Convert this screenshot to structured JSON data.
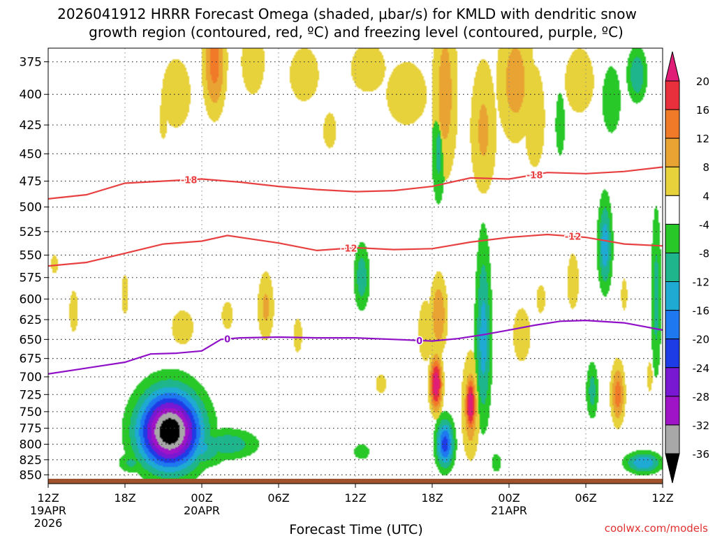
{
  "chart_data": {
    "type": "heatmap",
    "title_line1": "2026041912 HRRR Forecast Omega (shaded, μbar/s) for KMLD with dendritic snow",
    "title_line2": "growth region (contoured, red, ºC) and freezing level (contoured, purple, ºC)",
    "xlabel": "Forecast Time (UTC)",
    "credit": "coolwx.com/models",
    "x_hours_range": [
      0,
      48
    ],
    "y_pressure_range": [
      865,
      365
    ],
    "y_ticks": [
      375,
      400,
      425,
      450,
      475,
      500,
      525,
      550,
      575,
      600,
      625,
      650,
      675,
      700,
      725,
      750,
      775,
      800,
      825,
      850
    ],
    "x_ticks": [
      {
        "hour": 0,
        "time": "12Z",
        "date": "19APR",
        "year": "2026"
      },
      {
        "hour": 6,
        "time": "18Z",
        "date": "",
        "year": ""
      },
      {
        "hour": 12,
        "time": "00Z",
        "date": "20APR",
        "year": ""
      },
      {
        "hour": 18,
        "time": "06Z",
        "date": "",
        "year": ""
      },
      {
        "hour": 24,
        "time": "12Z",
        "date": "",
        "year": ""
      },
      {
        "hour": 30,
        "time": "18Z",
        "date": "",
        "year": ""
      },
      {
        "hour": 36,
        "time": "00Z",
        "date": "21APR",
        "year": ""
      },
      {
        "hour": 42,
        "time": "06Z",
        "date": "",
        "year": ""
      },
      {
        "hour": 48,
        "time": "12Z",
        "date": "",
        "year": ""
      }
    ],
    "colorbar_labels": [
      "20",
      "16",
      "12",
      "8",
      "4",
      "-4",
      "-8",
      "-12",
      "-16",
      "-20",
      "-24",
      "-28",
      "-32",
      "-36"
    ],
    "colorbar_bins": [
      {
        "range": [
          16,
          20
        ],
        "color": "#e8303c"
      },
      {
        "range": [
          12,
          16
        ],
        "color": "#f07a28"
      },
      {
        "range": [
          8,
          12
        ],
        "color": "#e8a332"
      },
      {
        "range": [
          4,
          8
        ],
        "color": "#e8d23c"
      },
      {
        "range": [
          -4,
          4
        ],
        "color": "#ffffff"
      },
      {
        "range": [
          -8,
          -4
        ],
        "color": "#28c828"
      },
      {
        "range": [
          -12,
          -8
        ],
        "color": "#1eb48c"
      },
      {
        "range": [
          -16,
          -12
        ],
        "color": "#1eaad2"
      },
      {
        "range": [
          -20,
          -16
        ],
        "color": "#1e78f0"
      },
      {
        "range": [
          -24,
          -20
        ],
        "color": "#1e3ce6"
      },
      {
        "range": [
          -28,
          -24
        ],
        "color": "#7818d2"
      },
      {
        "range": [
          -32,
          -28
        ],
        "color": "#a014c8"
      },
      {
        "range": [
          -36,
          -32
        ],
        "color": "#a8a8a8"
      }
    ],
    "colorbar_top_color": "#e01e78",
    "colorbar_bottom_color": "#000000",
    "contours": [
      {
        "name": "minus-18",
        "label": "-18",
        "color": "#e84040",
        "label_positions": [
          11,
          38
        ],
        "points": [
          [
            0,
            492
          ],
          [
            3,
            488
          ],
          [
            6,
            477
          ],
          [
            9,
            475
          ],
          [
            12,
            473
          ],
          [
            15,
            476
          ],
          [
            18,
            480
          ],
          [
            21,
            483
          ],
          [
            24,
            485
          ],
          [
            27,
            484
          ],
          [
            30,
            480
          ],
          [
            33,
            472
          ],
          [
            36,
            473
          ],
          [
            39,
            467
          ],
          [
            42,
            468
          ],
          [
            45,
            466
          ],
          [
            48,
            462
          ]
        ]
      },
      {
        "name": "minus-12",
        "label": "-12",
        "color": "#e84040",
        "label_positions": [
          23.5,
          41
        ],
        "points": [
          [
            0,
            562
          ],
          [
            3,
            558
          ],
          [
            6,
            548
          ],
          [
            9,
            538
          ],
          [
            12,
            535
          ],
          [
            14,
            529
          ],
          [
            16,
            533
          ],
          [
            18,
            537
          ],
          [
            21,
            545
          ],
          [
            24,
            542
          ],
          [
            27,
            544
          ],
          [
            30,
            543
          ],
          [
            33,
            536
          ],
          [
            36,
            531
          ],
          [
            39,
            528
          ],
          [
            41,
            530
          ],
          [
            42,
            531
          ],
          [
            45,
            538
          ],
          [
            48,
            540
          ]
        ]
      },
      {
        "name": "zero",
        "label": "0",
        "color": "#9010c8",
        "label_positions": [
          14,
          29
        ],
        "points": [
          [
            0,
            696
          ],
          [
            3,
            688
          ],
          [
            6,
            680
          ],
          [
            8,
            669
          ],
          [
            10,
            668
          ],
          [
            12,
            665
          ],
          [
            13.5,
            650
          ],
          [
            15,
            648
          ],
          [
            18,
            647
          ],
          [
            21,
            648
          ],
          [
            24,
            648
          ],
          [
            27,
            650
          ],
          [
            30,
            652
          ],
          [
            32,
            649
          ],
          [
            34,
            644
          ],
          [
            36,
            638
          ],
          [
            38,
            632
          ],
          [
            40,
            627
          ],
          [
            42,
            626
          ],
          [
            45,
            629
          ],
          [
            48,
            638
          ]
        ]
      }
    ],
    "omega_blobs": [
      {
        "h": 9.5,
        "p": 780,
        "rh": 3.5,
        "rp": 85,
        "min": -40
      },
      {
        "h": 11.5,
        "p": 805,
        "rh": 3.5,
        "rp": 45,
        "min": -14
      },
      {
        "h": 14,
        "p": 800,
        "rh": 3.5,
        "rp": 35,
        "min": -11
      },
      {
        "h": 6.5,
        "p": 830,
        "rh": 1.5,
        "rp": 25,
        "min": -9
      },
      {
        "h": 24.5,
        "p": 575,
        "rh": 0.9,
        "rp": 55,
        "min": -11
      },
      {
        "h": 24.5,
        "p": 812,
        "rh": 1.0,
        "rp": 20,
        "min": -8
      },
      {
        "h": 30.5,
        "p": 450,
        "rh": 0.8,
        "rp": 75,
        "min": -9
      },
      {
        "h": 31,
        "p": 800,
        "rh": 1.0,
        "rp": 55,
        "min": -22
      },
      {
        "h": 34,
        "p": 650,
        "rh": 0.9,
        "rp": 170,
        "min": -14
      },
      {
        "h": 35,
        "p": 830,
        "rh": 0.6,
        "rp": 25,
        "min": -8
      },
      {
        "h": 40,
        "p": 425,
        "rh": 0.6,
        "rp": 45,
        "min": -8
      },
      {
        "h": 42.5,
        "p": 720,
        "rh": 0.7,
        "rp": 60,
        "min": -10
      },
      {
        "h": 43.5,
        "p": 540,
        "rh": 0.8,
        "rp": 70,
        "min": -15
      },
      {
        "h": 44,
        "p": 405,
        "rh": 1.2,
        "rp": 45,
        "min": -8
      },
      {
        "h": 46,
        "p": 385,
        "rh": 1.1,
        "rp": 30,
        "min": -12
      },
      {
        "h": 46.5,
        "p": 830,
        "rh": 2.0,
        "rp": 25,
        "min": -16
      },
      {
        "h": 47.5,
        "p": 600,
        "rh": 0.6,
        "rp": 150,
        "min": -10
      },
      {
        "h": 13,
        "p": 375,
        "rh": 1.3,
        "rp": 60,
        "max": 14
      },
      {
        "h": 10,
        "p": 400,
        "rh": 2.5,
        "rp": 60,
        "max": 6
      },
      {
        "h": 16,
        "p": 375,
        "rh": 2.0,
        "rp": 55,
        "max": 6
      },
      {
        "h": 20,
        "p": 385,
        "rh": 2.5,
        "rp": 45,
        "max": 6
      },
      {
        "h": 25,
        "p": 380,
        "rh": 3.0,
        "rp": 40,
        "max": 6
      },
      {
        "h": 22,
        "p": 430,
        "rh": 1.5,
        "rp": 45,
        "max": 5
      },
      {
        "h": 28,
        "p": 400,
        "rh": 3.5,
        "rp": 55,
        "max": 6
      },
      {
        "h": 31,
        "p": 400,
        "rh": 1.5,
        "rp": 110,
        "max": 10
      },
      {
        "h": 34,
        "p": 430,
        "rh": 1.6,
        "rp": 90,
        "max": 9
      },
      {
        "h": 36.5,
        "p": 390,
        "rh": 2.2,
        "rp": 75,
        "max": 10
      },
      {
        "h": 38,
        "p": 420,
        "rh": 1.5,
        "rp": 80,
        "max": 7
      },
      {
        "h": 41.5,
        "p": 390,
        "rh": 2.5,
        "rp": 55,
        "max": 6
      },
      {
        "h": 9,
        "p": 420,
        "rh": 0.9,
        "rp": 50,
        "max": 5
      },
      {
        "h": 2,
        "p": 615,
        "rh": 1.0,
        "rp": 75,
        "max": 5
      },
      {
        "h": 0.5,
        "p": 560,
        "rh": 0.8,
        "rp": 30,
        "max": 5
      },
      {
        "h": 6,
        "p": 595,
        "rh": 0.8,
        "rp": 70,
        "max": 5
      },
      {
        "h": 10.5,
        "p": 635,
        "rh": 1.6,
        "rp": 40,
        "max": 7
      },
      {
        "h": 14,
        "p": 620,
        "rh": 1.3,
        "rp": 50,
        "max": 5
      },
      {
        "h": 17,
        "p": 610,
        "rh": 1.0,
        "rp": 65,
        "max": 9
      },
      {
        "h": 19.5,
        "p": 645,
        "rh": 1.0,
        "rp": 65,
        "max": 5
      },
      {
        "h": 26,
        "p": 710,
        "rh": 1.2,
        "rp": 40,
        "max": 5
      },
      {
        "h": 29.5,
        "p": 640,
        "rh": 1.0,
        "rp": 65,
        "max": 8
      },
      {
        "h": 30.5,
        "p": 620,
        "rh": 1.0,
        "rp": 70,
        "max": 12
      },
      {
        "h": 30.3,
        "p": 710,
        "rh": 0.7,
        "rp": 55,
        "max": 24
      },
      {
        "h": 33,
        "p": 745,
        "rh": 1.0,
        "rp": 110,
        "max": 12
      },
      {
        "h": 33,
        "p": 740,
        "rh": 0.6,
        "rp": 60,
        "max": 24
      },
      {
        "h": 37,
        "p": 645,
        "rh": 1.5,
        "rp": 75,
        "max": 6
      },
      {
        "h": 38.5,
        "p": 600,
        "rh": 1.0,
        "rp": 50,
        "max": 5
      },
      {
        "h": 41,
        "p": 580,
        "rh": 1.0,
        "rp": 70,
        "max": 6
      },
      {
        "h": 44.5,
        "p": 725,
        "rh": 0.8,
        "rp": 65,
        "max": 14
      },
      {
        "h": 45,
        "p": 595,
        "rh": 0.7,
        "rp": 55,
        "max": 5
      },
      {
        "h": 47,
        "p": 700,
        "rh": 0.6,
        "rp": 60,
        "max": 5
      }
    ]
  }
}
